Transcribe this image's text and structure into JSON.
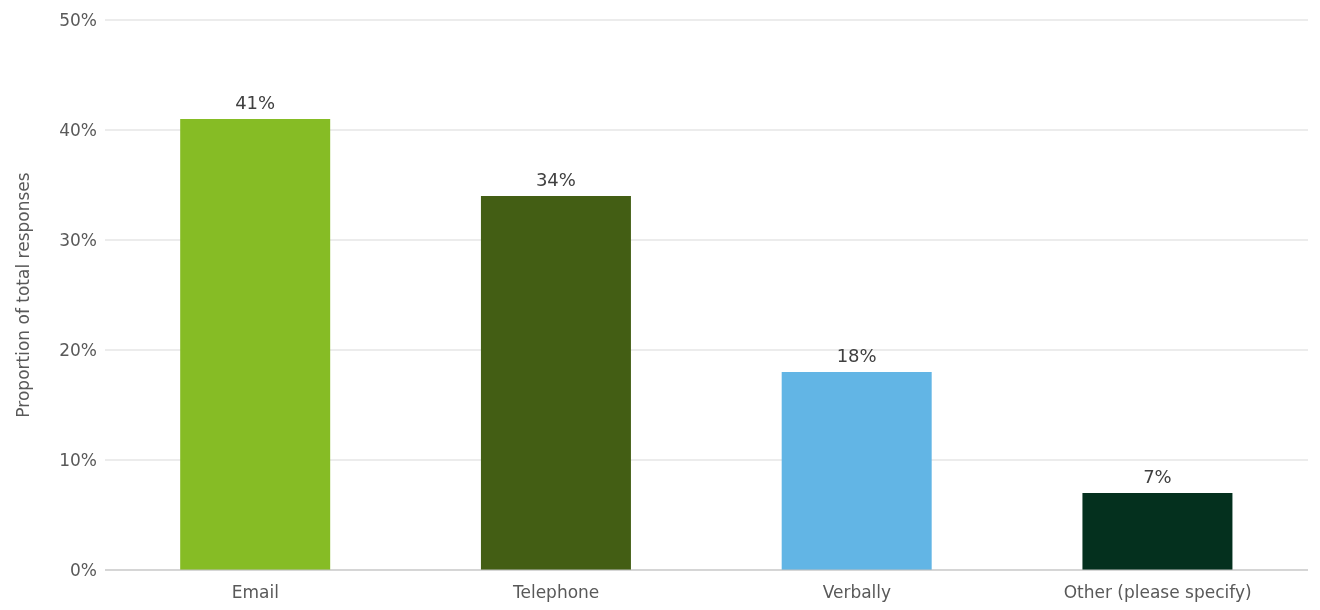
{
  "chart_data": {
    "type": "bar",
    "ylabel": "Proportion of total responses",
    "categories": [
      "Email",
      "Telephone",
      "Verbally",
      "Other (please specify)"
    ],
    "values": [
      41,
      34,
      18,
      7
    ],
    "value_labels": [
      "41%",
      "34%",
      "18%",
      "7%"
    ],
    "colors": [
      "#86bc25",
      "#435e14",
      "#62b5e5",
      "#04301e"
    ],
    "ylim": [
      0,
      50
    ],
    "yticks": [
      {
        "value": 0,
        "label": "0%"
      },
      {
        "value": 10,
        "label": "10%"
      },
      {
        "value": 20,
        "label": "20%"
      },
      {
        "value": 30,
        "label": "30%"
      },
      {
        "value": 40,
        "label": "40%"
      },
      {
        "value": 50,
        "label": "50%"
      }
    ],
    "grid": "y",
    "legend": false
  }
}
